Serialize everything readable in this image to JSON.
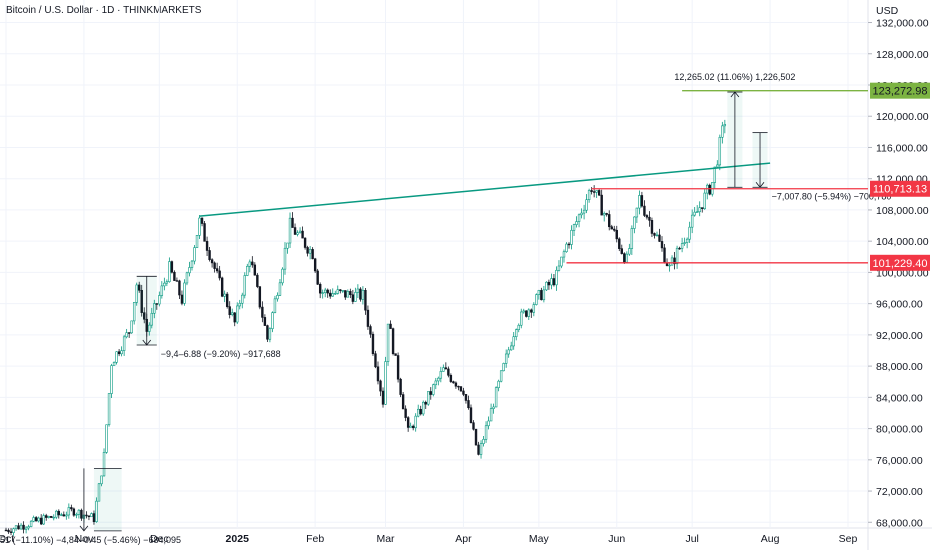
{
  "header": {
    "title": "Bitcoin / U.S. Dollar · 1D · THINKMARKETS"
  },
  "chart_data": {
    "type": "candlestick",
    "title": "Bitcoin / U.S. Dollar · 1D · THINKMARKETS",
    "currency_label": "USD",
    "ylim": [
      66500,
      134500
    ],
    "y_ticks": [
      {
        "value": 132000,
        "label": "132,000.00"
      },
      {
        "value": 128000,
        "label": "128,000.00"
      },
      {
        "value": 124000,
        "label": "124,000.00"
      },
      {
        "value": 120000,
        "label": "120,000.00"
      },
      {
        "value": 116000,
        "label": "116,000.00"
      },
      {
        "value": 112000,
        "label": "112,000.00"
      },
      {
        "value": 108000,
        "label": "108,000.00"
      },
      {
        "value": 104000,
        "label": "104,000.00"
      },
      {
        "value": 100000,
        "label": "100,000.00"
      },
      {
        "value": 96000,
        "label": "96,000.00"
      },
      {
        "value": 92000,
        "label": "92,000.00"
      },
      {
        "value": 88000,
        "label": "88,000.00"
      },
      {
        "value": 84000,
        "label": "84,000.00"
      },
      {
        "value": 80000,
        "label": "80,000.00"
      },
      {
        "value": 76000,
        "label": "76,000.00"
      },
      {
        "value": 72000,
        "label": "72,000.00"
      },
      {
        "value": 68000,
        "label": "68,000.00"
      }
    ],
    "x_ticks": [
      {
        "date": "2024-10-01",
        "label": "Oct",
        "bold": false
      },
      {
        "date": "2024-11-01",
        "label": "Nov",
        "bold": false
      },
      {
        "date": "2024-12-01",
        "label": "Dec",
        "bold": false
      },
      {
        "date": "2025-01-01",
        "label": "2025",
        "bold": true
      },
      {
        "date": "2025-02-01",
        "label": "Feb",
        "bold": false
      },
      {
        "date": "2025-03-01",
        "label": "Mar",
        "bold": false
      },
      {
        "date": "2025-04-01",
        "label": "Apr",
        "bold": false
      },
      {
        "date": "2025-05-01",
        "label": "May",
        "bold": false
      },
      {
        "date": "2025-06-01",
        "label": "Jun",
        "bold": false
      },
      {
        "date": "2025-07-01",
        "label": "Jul",
        "bold": false
      },
      {
        "date": "2025-08-01",
        "label": "Aug",
        "bold": false
      },
      {
        "date": "2025-09-01",
        "label": "Sep",
        "bold": false
      }
    ],
    "price_path": [
      {
        "date": "2024-10-01",
        "price": 67000
      },
      {
        "date": "2024-10-28",
        "price": 69500
      },
      {
        "date": "2024-11-05",
        "price": 68500
      },
      {
        "date": "2024-11-09",
        "price": 76500
      },
      {
        "date": "2024-11-12",
        "price": 88500
      },
      {
        "date": "2024-11-19",
        "price": 92500
      },
      {
        "date": "2024-11-22",
        "price": 98500
      },
      {
        "date": "2024-11-26",
        "price": 92500
      },
      {
        "date": "2024-12-05",
        "price": 100500
      },
      {
        "date": "2024-12-10",
        "price": 96500
      },
      {
        "date": "2024-12-17",
        "price": 106500
      },
      {
        "date": "2024-12-25",
        "price": 98500
      },
      {
        "date": "2024-12-31",
        "price": 93500
      },
      {
        "date": "2025-01-06",
        "price": 102000
      },
      {
        "date": "2025-01-13",
        "price": 91500
      },
      {
        "date": "2025-01-22",
        "price": 106000
      },
      {
        "date": "2025-01-31",
        "price": 102500
      },
      {
        "date": "2025-02-03",
        "price": 97500
      },
      {
        "date": "2025-02-20",
        "price": 97000
      },
      {
        "date": "2025-02-28",
        "price": 83500
      },
      {
        "date": "2025-03-02",
        "price": 94000
      },
      {
        "date": "2025-03-10",
        "price": 79500
      },
      {
        "date": "2025-03-24",
        "price": 87500
      },
      {
        "date": "2025-04-01",
        "price": 85000
      },
      {
        "date": "2025-04-07",
        "price": 76500
      },
      {
        "date": "2025-04-10",
        "price": 80000
      },
      {
        "date": "2025-04-22",
        "price": 93500
      },
      {
        "date": "2025-05-08",
        "price": 99500
      },
      {
        "date": "2025-05-12",
        "price": 103500
      },
      {
        "date": "2025-05-22",
        "price": 111000
      },
      {
        "date": "2025-06-05",
        "price": 101500
      },
      {
        "date": "2025-06-10",
        "price": 109500
      },
      {
        "date": "2025-06-17",
        "price": 104500
      },
      {
        "date": "2025-06-22",
        "price": 100500
      },
      {
        "date": "2025-07-01",
        "price": 106500
      },
      {
        "date": "2025-07-09",
        "price": 111500
      },
      {
        "date": "2025-07-14",
        "price": 119500
      }
    ],
    "trendline": {
      "start": {
        "date": "2024-12-17",
        "price": 107200
      },
      "end": {
        "date": "2025-08-01",
        "price": 114000
      },
      "color": "#089981"
    },
    "levels": [
      {
        "price": 123272.98,
        "label": "123,272.98",
        "color": "#7cb342",
        "start_date": "2025-06-27"
      },
      {
        "price": 110713.13,
        "label": "110,713.13",
        "color": "#f23645",
        "start_date": "2025-05-22"
      },
      {
        "price": 101229.4,
        "label": "101,229.40",
        "color": "#f23645",
        "start_date": "2025-05-12"
      }
    ],
    "measure_annotations": [
      {
        "label": "12,265.02 (11.06%) 1,226,502",
        "date": "2025-07-18",
        "from_price": 110900,
        "to_price": 123100,
        "date_start": "2025-07-15",
        "date_end": "2025-07-21"
      },
      {
        "label": "−7,007.80 (−5.94%) −700,780",
        "date": "2025-07-28",
        "from_price": 117900,
        "to_price": 110900,
        "date_start": "2025-07-25",
        "date_end": "2025-07-31"
      },
      {
        "label": "−9,4‒6.88 (−9.20%) −917,688",
        "date": "2024-11-26",
        "from_price": 99500,
        "to_price": 90700,
        "date_start": "2024-11-22",
        "date_end": "2024-11-30"
      },
      {
        "label": "51 (−11.10%) −4,84‒0.45 (−5.46%) −684,095",
        "date": "2024-11-01",
        "from_price": 74900,
        "to_price": 66900,
        "date_start": "2024-11-05",
        "date_end": "2024-11-16"
      }
    ],
    "colors": {
      "up": "#089981",
      "down": "#131722",
      "grid": "#f0f3fa"
    }
  }
}
